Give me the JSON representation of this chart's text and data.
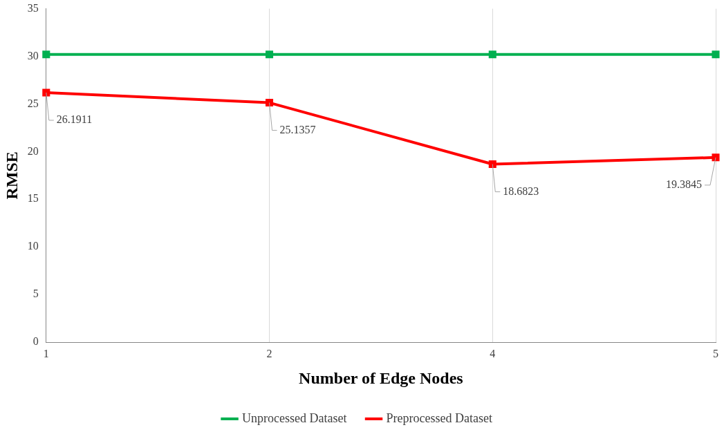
{
  "chart_data": {
    "type": "line",
    "xlabel": "Number of Edge Nodes",
    "ylabel": "RMSE",
    "categories": [
      "1",
      "2",
      "4",
      "5"
    ],
    "series": [
      {
        "name": "Unprocessed Dataset",
        "color": "#00b050",
        "values": [
          30.2,
          30.2,
          30.2,
          30.2
        ]
      },
      {
        "name": "Preprocessed Dataset",
        "color": "#ff0000",
        "values": [
          26.1911,
          25.1357,
          18.6823,
          19.3845
        ],
        "value_labels": [
          "26.1911",
          "25.1357",
          "18.6823",
          "19.3845"
        ]
      }
    ],
    "ylim": [
      0,
      35
    ],
    "yticks": [
      0,
      5,
      10,
      15,
      20,
      25,
      30,
      35
    ],
    "grid": "x",
    "legend": "bottom",
    "marker": "square",
    "line_style": "solid"
  }
}
